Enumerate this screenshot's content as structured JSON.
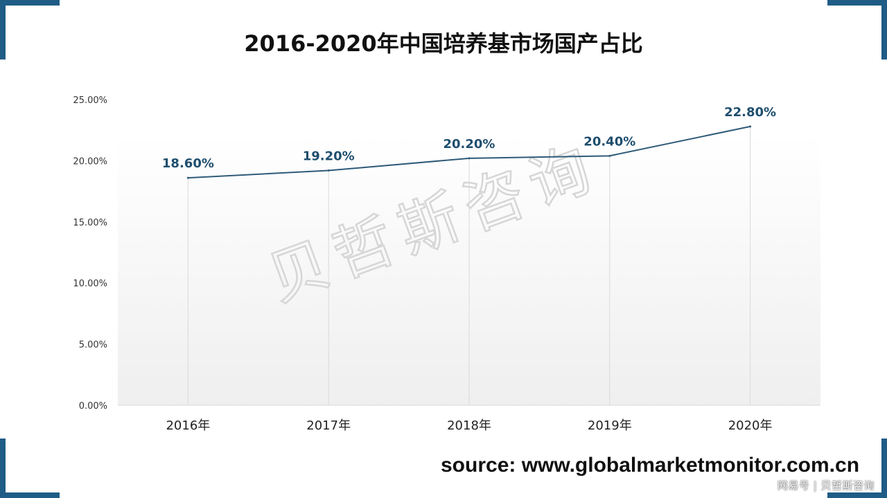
{
  "title": "2016-2020年中国培养基市场国产占比",
  "chart_data": {
    "type": "line",
    "categories": [
      "2016年",
      "2017年",
      "2018年",
      "2019年",
      "2020年"
    ],
    "series": [
      {
        "values": [
          18.6,
          19.2,
          20.2,
          20.4,
          22.8
        ]
      }
    ],
    "data_labels": [
      "18.60%",
      "19.20%",
      "20.20%",
      "20.40%",
      "22.80%"
    ],
    "y_ticks": [
      0,
      5,
      10,
      15,
      20,
      25
    ],
    "y_tick_labels": [
      "0.00%",
      "5.00%",
      "10.00%",
      "15.00%",
      "20.00%",
      "25.00%"
    ],
    "ylim": [
      0,
      25
    ],
    "xlabel": "",
    "ylabel": "",
    "grid": false,
    "vertical_drop_lines": true,
    "line_color": "#2e5a78",
    "label_color": "#1f4e6e"
  },
  "watermark": "贝哲斯咨询",
  "source": "source: www.globalmarketmonitor.com.cn",
  "badge": "网易号 | 贝哲斯咨询",
  "colors": {
    "accent": "#1f5c86"
  }
}
